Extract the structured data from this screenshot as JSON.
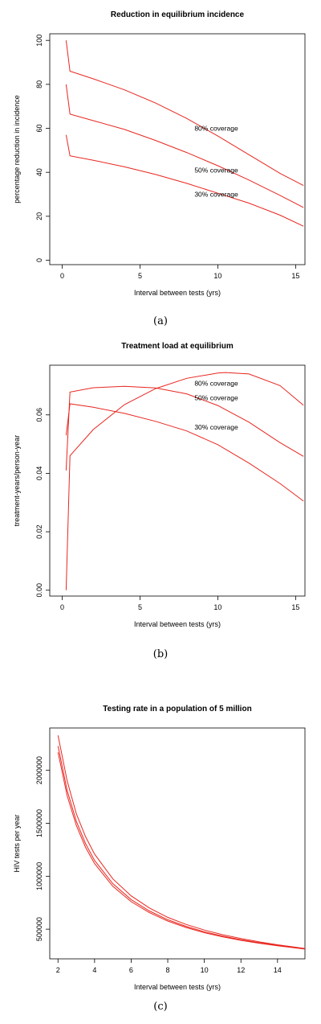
{
  "chart_data": [
    {
      "id": "a",
      "type": "line",
      "title": "Reduction in equilibrium incidence",
      "xlabel": "Interval between tests (yrs)",
      "ylabel": "percentage reduction in incidence",
      "xlim": [
        -0.8,
        15.6
      ],
      "ylim": [
        -2,
        103
      ],
      "xticks": [
        0,
        5,
        10,
        15
      ],
      "yticks": [
        0,
        20,
        40,
        60,
        80,
        100
      ],
      "caption": "(a)",
      "series": [
        {
          "name": "80% coverage",
          "label_at": [
            8.5,
            60
          ],
          "x": [
            0.25,
            0.5,
            2,
            4,
            6,
            8,
            10,
            12,
            14,
            15.5
          ],
          "y": [
            100,
            86,
            82.5,
            77.5,
            71.5,
            64.5,
            56.5,
            48,
            39.5,
            34
          ]
        },
        {
          "name": "50% coverage",
          "label_at": [
            8.5,
            41
          ],
          "x": [
            0.25,
            0.5,
            2,
            4,
            6,
            8,
            10,
            12,
            14,
            15.5
          ],
          "y": [
            80,
            66.5,
            63.5,
            59.5,
            54.5,
            49,
            43,
            36.5,
            29.5,
            24
          ]
        },
        {
          "name": "30% coverage",
          "label_at": [
            8.5,
            30
          ],
          "x": [
            0.25,
            0.5,
            2,
            4,
            6,
            8,
            10,
            12,
            14,
            15.5
          ],
          "y": [
            57,
            47.5,
            45.5,
            42.5,
            39,
            35,
            30.5,
            26,
            20.5,
            15.5
          ]
        }
      ]
    },
    {
      "id": "b",
      "type": "line",
      "title": "Treatment load at equilibrium",
      "xlabel": "Interval between tests (yrs)",
      "ylabel": "treatment-years/person-year",
      "xlim": [
        -0.8,
        15.6
      ],
      "ylim": [
        -0.002,
        0.077
      ],
      "xticks": [
        0,
        5,
        10,
        15
      ],
      "yticks": [
        0.0,
        0.02,
        0.04,
        0.06
      ],
      "ytick_labels": [
        "0.00",
        "0.02",
        "0.04",
        "0.06"
      ],
      "caption": "(b)",
      "series": [
        {
          "name": "80% coverage",
          "label_at": [
            8.5,
            0.0708
          ],
          "x": [
            0.25,
            0.5,
            2,
            4,
            6,
            8,
            10,
            10.5,
            12,
            14,
            15.5
          ],
          "y": [
            0.0,
            0.046,
            0.055,
            0.0635,
            0.069,
            0.0725,
            0.0743,
            0.0745,
            0.074,
            0.07,
            0.0633
          ]
        },
        {
          "name": "50% coverage",
          "label_at": [
            8.5,
            0.0658
          ],
          "x": [
            0.25,
            0.5,
            2,
            4,
            6,
            8,
            10,
            12,
            14,
            15.5
          ],
          "y": [
            0.041,
            0.0678,
            0.0693,
            0.0698,
            0.0692,
            0.0672,
            0.0632,
            0.0575,
            0.0505,
            0.0458
          ]
        },
        {
          "name": "30% coverage",
          "label_at": [
            8.5,
            0.0558
          ],
          "x": [
            0.25,
            0.5,
            2,
            4,
            6,
            8,
            10,
            12,
            14,
            15.5
          ],
          "y": [
            0.053,
            0.0638,
            0.0626,
            0.0605,
            0.0578,
            0.0545,
            0.0498,
            0.0435,
            0.0365,
            0.0305
          ]
        }
      ]
    },
    {
      "id": "c",
      "type": "line",
      "title": "Testing rate in a population of 5 million",
      "xlabel": "Interval between tests (yrs)",
      "ylabel": "HIV tests per year",
      "xlim": [
        1.55,
        15.5
      ],
      "ylim": [
        220000,
        2400000
      ],
      "xticks": [
        2,
        4,
        6,
        8,
        10,
        12,
        14
      ],
      "yticks": [
        500000,
        1000000,
        1500000,
        2000000
      ],
      "ytick_labels": [
        "500000",
        "1000000",
        "1500000",
        "2000000"
      ],
      "caption": "(c)",
      "series": [
        {
          "x": [
            2,
            2.5,
            3,
            3.5,
            4,
            5,
            6,
            7,
            8,
            9,
            10,
            11,
            12,
            13,
            14,
            15.5
          ],
          "y": [
            2330000,
            1900000,
            1590000,
            1375000,
            1210000,
            975000,
            815000,
            700000,
            612000,
            545000,
            492000,
            448000,
            412000,
            380000,
            353000,
            318000
          ]
        },
        {
          "x": [
            2,
            2.5,
            3,
            3.5,
            4,
            5,
            6,
            7,
            8,
            9,
            10,
            11,
            12,
            13,
            14,
            15.5
          ],
          "y": [
            2230000,
            1810000,
            1520000,
            1310000,
            1150000,
            930000,
            780000,
            672000,
            590000,
            527000,
            476000,
            435000,
            400000,
            372000,
            347000,
            315000
          ]
        },
        {
          "x": [
            2,
            2.5,
            3,
            3.5,
            4,
            5,
            6,
            7,
            8,
            9,
            10,
            11,
            12,
            13,
            14,
            15.5
          ],
          "y": [
            2170000,
            1760000,
            1480000,
            1275000,
            1120000,
            905000,
            760000,
            656000,
            577000,
            516000,
            467000,
            428000,
            395000,
            367000,
            343000,
            312000
          ]
        }
      ]
    }
  ],
  "colors": {
    "line": "#e8261f",
    "axis": "#000000"
  }
}
